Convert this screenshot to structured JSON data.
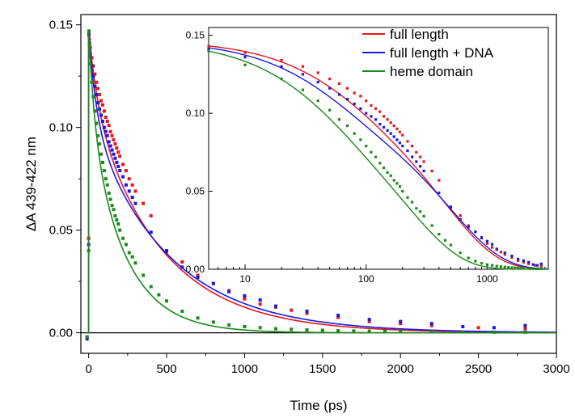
{
  "chart_data": [
    {
      "type": "scatter",
      "xlabel": "Time (ps)",
      "ylabel": "ΔA 439-422 nm",
      "xlim": [
        -50,
        3000
      ],
      "ylim": [
        -0.01,
        0.155
      ],
      "xticks": [
        0,
        500,
        1000,
        1500,
        2000,
        2500,
        3000
      ],
      "xtick_labels": [
        "0",
        "500",
        "1000",
        "1500",
        "2000",
        "2500",
        "3000"
      ],
      "yticks": [
        0.0,
        0.05,
        0.1,
        0.15
      ],
      "ytick_labels": [
        "0.00",
        "0.05",
        "0.10",
        "0.15"
      ],
      "grid": false,
      "zero_line": true,
      "series": [
        {
          "name": "full length",
          "color": "#e8141e",
          "fit": {
            "A1": 0.115,
            "tau1": 450,
            "A2": 0.032,
            "tau2": 60
          },
          "x": [
            -10,
            0,
            2,
            5,
            10,
            20,
            30,
            40,
            50,
            60,
            70,
            80,
            90,
            100,
            110,
            120,
            130,
            140,
            150,
            160,
            170,
            180,
            190,
            200,
            220,
            240,
            260,
            280,
            300,
            350,
            400,
            500,
            600,
            700,
            800,
            900,
            1000,
            1100,
            1200,
            1300,
            1400,
            1600,
            1800,
            2000,
            2200,
            2500,
            2800
          ],
          "y": [
            -0.002,
            0.046,
            0.146,
            0.143,
            0.139,
            0.134,
            0.13,
            0.126,
            0.122,
            0.119,
            0.116,
            0.113,
            0.111,
            0.108,
            0.105,
            0.103,
            0.101,
            0.098,
            0.096,
            0.094,
            0.092,
            0.09,
            0.088,
            0.086,
            0.082,
            0.079,
            0.075,
            0.072,
            0.069,
            0.063,
            0.057,
            0.0395,
            0.0345,
            0.028,
            0.024,
            0.0205,
            0.0165,
            0.014,
            0.0125,
            0.011,
            0.0095,
            0.0075,
            0.0055,
            0.0045,
            0.0035,
            0.0025,
            0.002
          ]
        },
        {
          "name": "full length + DNA",
          "color": "#1a1ae0",
          "fit": {
            "A1": 0.105,
            "tau1": 500,
            "A2": 0.042,
            "tau2": 50
          },
          "x": [
            -10,
            0,
            2,
            5,
            10,
            20,
            30,
            40,
            50,
            60,
            70,
            80,
            90,
            100,
            110,
            120,
            130,
            140,
            150,
            160,
            170,
            180,
            190,
            200,
            220,
            240,
            260,
            280,
            300,
            400,
            500,
            600,
            700,
            800,
            900,
            1000,
            1100,
            1200,
            1400,
            1600,
            1800,
            2000,
            2200,
            2400,
            2600,
            2800
          ],
          "y": [
            -0.003,
            0.043,
            0.145,
            0.141,
            0.136,
            0.13,
            0.125,
            0.12,
            0.116,
            0.112,
            0.109,
            0.106,
            0.103,
            0.1,
            0.098,
            0.096,
            0.093,
            0.091,
            0.089,
            0.087,
            0.085,
            0.083,
            0.081,
            0.079,
            0.076,
            0.072,
            0.069,
            0.066,
            0.063,
            0.049,
            0.04,
            0.032,
            0.027,
            0.024,
            0.02,
            0.018,
            0.016,
            0.013,
            0.0105,
            0.0085,
            0.0065,
            0.0055,
            0.0045,
            0.003,
            0.0025,
            0.0035
          ]
        },
        {
          "name": "heme domain",
          "color": "#1a8a1a",
          "fit": {
            "A1": 0.105,
            "tau1": 230,
            "A2": 0.042,
            "tau2": 40
          },
          "x": [
            -10,
            0,
            2,
            5,
            10,
            20,
            30,
            40,
            50,
            60,
            70,
            80,
            90,
            100,
            110,
            120,
            130,
            140,
            150,
            160,
            170,
            180,
            190,
            200,
            220,
            240,
            260,
            280,
            300,
            350,
            400,
            450,
            500,
            600,
            700,
            800,
            900,
            1000,
            1100,
            1200,
            1300,
            1400,
            1500,
            1600,
            1700,
            1800,
            1900,
            2000,
            2200,
            2400,
            2600,
            2800
          ],
          "y": [
            -0.002,
            0.04,
            0.147,
            0.14,
            0.131,
            0.122,
            0.115,
            0.108,
            0.102,
            0.096,
            0.092,
            0.087,
            0.083,
            0.079,
            0.075,
            0.072,
            0.068,
            0.065,
            0.062,
            0.06,
            0.057,
            0.055,
            0.053,
            0.05,
            0.046,
            0.043,
            0.039,
            0.037,
            0.034,
            0.028,
            0.0225,
            0.0185,
            0.0155,
            0.0105,
            0.0072,
            0.0052,
            0.0038,
            0.003,
            0.0025,
            0.002,
            0.0017,
            0.0014,
            0.0012,
            0.001,
            0.0009,
            0.0008,
            0.0007,
            0.0006,
            0.0005,
            0.0004,
            0.0003,
            0.0003
          ]
        }
      ]
    },
    {
      "type": "scatter",
      "xlog": true,
      "xlim": [
        5,
        3200
      ],
      "ylim": [
        0,
        0.155
      ],
      "xticks": [
        10,
        100,
        1000
      ],
      "xtick_labels": [
        "10",
        "100",
        "1000"
      ],
      "yticks": [
        0.0,
        0.05,
        0.1,
        0.15
      ],
      "ytick_labels": [
        "0.00",
        "0.05",
        "0.10",
        "0.15"
      ],
      "grid": false,
      "legend": {
        "placement": "top-right",
        "entries": [
          "full length",
          "full length + DNA",
          "heme domain"
        ]
      }
    }
  ]
}
